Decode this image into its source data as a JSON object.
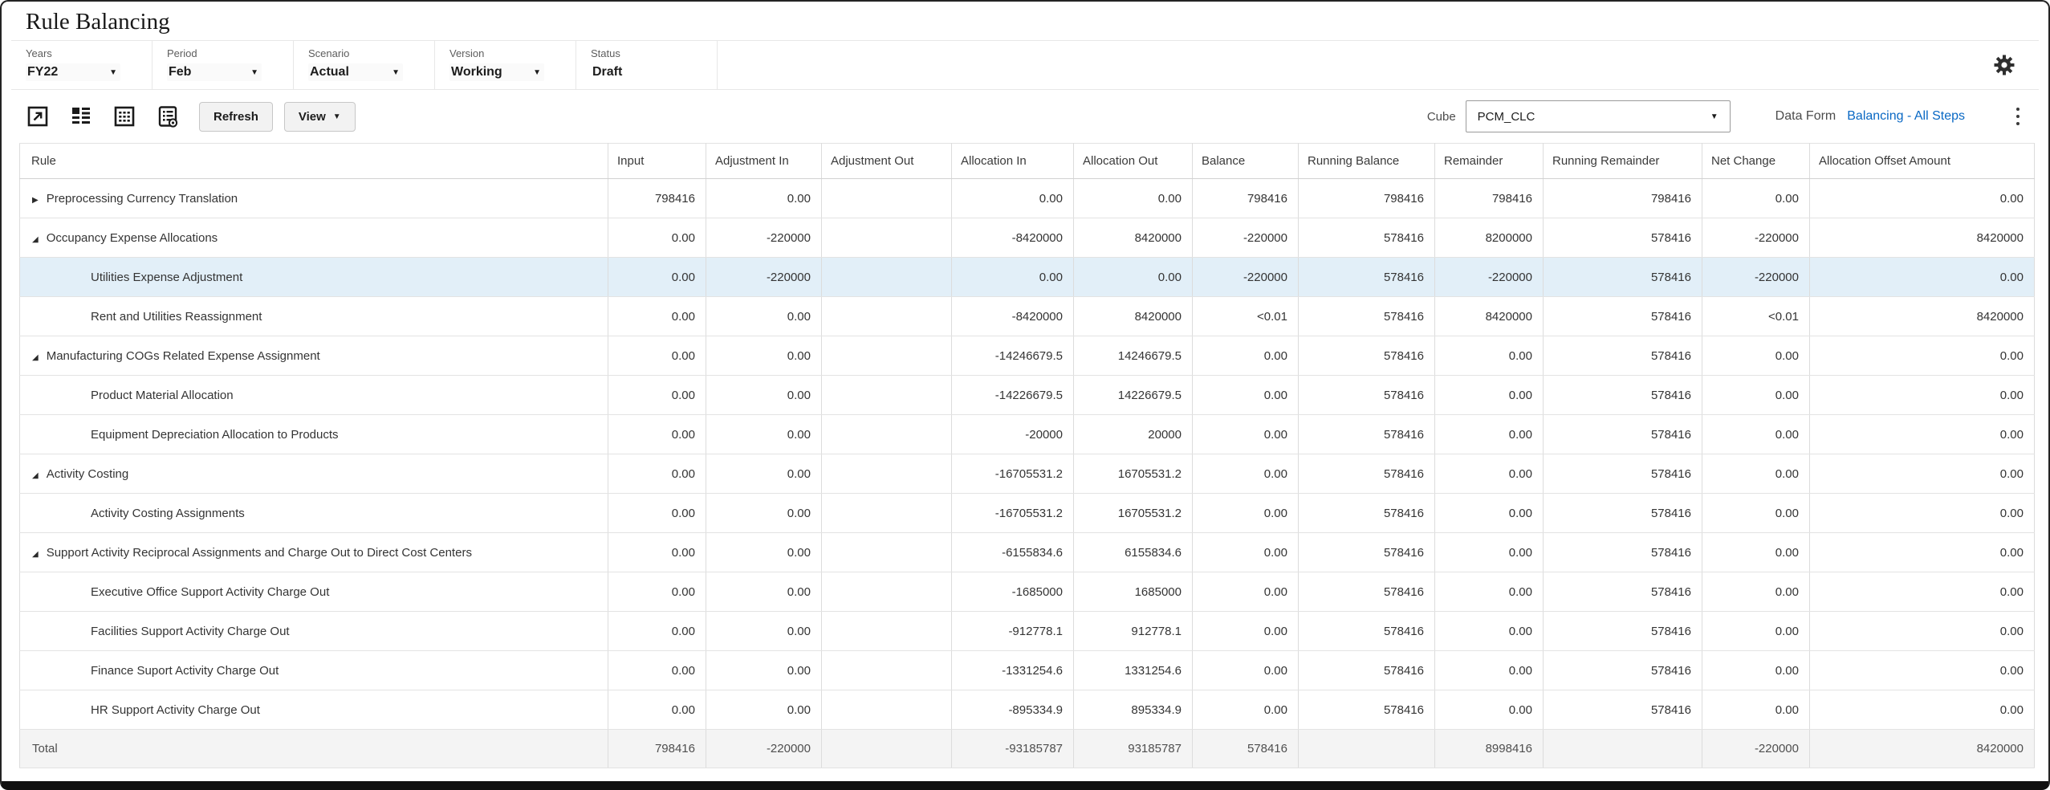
{
  "page": {
    "title": "Rule Balancing"
  },
  "pov": {
    "items": [
      {
        "label": "Years",
        "value": "FY22",
        "has_dropdown": true
      },
      {
        "label": "Period",
        "value": "Feb",
        "has_dropdown": true
      },
      {
        "label": "Scenario",
        "value": "Actual",
        "has_dropdown": true
      },
      {
        "label": "Version",
        "value": "Working",
        "has_dropdown": true
      },
      {
        "label": "Status",
        "value": "Draft",
        "has_dropdown": false
      }
    ]
  },
  "toolbar": {
    "refresh_label": "Refresh",
    "view_label": "View",
    "cube_label": "Cube",
    "cube_value": "PCM_CLC",
    "data_form_label": "Data Form",
    "data_form_link": "Balancing - All Steps",
    "icons": [
      "drill-icon",
      "list-view-icon",
      "grid-view-icon",
      "form-preview-icon",
      "gear-icon",
      "kebab-menu-icon"
    ]
  },
  "colors": {
    "link_blue": "#0968c4",
    "row_highlight": "#e2eff8",
    "total_row_bg": "#f4f4f4"
  },
  "table": {
    "columns": [
      "Rule",
      "Input",
      "Adjustment In",
      "Adjustment Out",
      "Allocation In",
      "Allocation Out",
      "Balance",
      "Running Balance",
      "Remainder",
      "Running Remainder",
      "Net Change",
      "Allocation Offset Amount"
    ],
    "rows": [
      {
        "name": "Preprocessing Currency Translation",
        "level": 0,
        "expand": "collapsed",
        "highlighted": false,
        "values": [
          "798416",
          "0.00",
          "",
          "0.00",
          "0.00",
          "798416",
          "798416",
          "798416",
          "798416",
          "0.00",
          "0.00"
        ]
      },
      {
        "name": "Occupancy Expense Allocations",
        "level": 0,
        "expand": "expanded",
        "highlighted": false,
        "values": [
          "0.00",
          "-220000",
          "",
          "-8420000",
          "8420000",
          "-220000",
          "578416",
          "8200000",
          "578416",
          "-220000",
          "8420000"
        ]
      },
      {
        "name": "Utilities Expense Adjustment",
        "level": 1,
        "expand": null,
        "highlighted": true,
        "values": [
          "0.00",
          "-220000",
          "",
          "0.00",
          "0.00",
          "-220000",
          "578416",
          "-220000",
          "578416",
          "-220000",
          "0.00"
        ]
      },
      {
        "name": "Rent and Utilities Reassignment",
        "level": 1,
        "expand": null,
        "highlighted": false,
        "values": [
          "0.00",
          "0.00",
          "",
          "-8420000",
          "8420000",
          "<0.01",
          "578416",
          "8420000",
          "578416",
          "<0.01",
          "8420000"
        ]
      },
      {
        "name": "Manufacturing COGs Related Expense Assignment",
        "level": 0,
        "expand": "expanded",
        "highlighted": false,
        "values": [
          "0.00",
          "0.00",
          "",
          "-14246679.5",
          "14246679.5",
          "0.00",
          "578416",
          "0.00",
          "578416",
          "0.00",
          "0.00"
        ]
      },
      {
        "name": "Product Material Allocation",
        "level": 1,
        "expand": null,
        "highlighted": false,
        "values": [
          "0.00",
          "0.00",
          "",
          "-14226679.5",
          "14226679.5",
          "0.00",
          "578416",
          "0.00",
          "578416",
          "0.00",
          "0.00"
        ]
      },
      {
        "name": "Equipment Depreciation Allocation to Products",
        "level": 1,
        "expand": null,
        "highlighted": false,
        "values": [
          "0.00",
          "0.00",
          "",
          "-20000",
          "20000",
          "0.00",
          "578416",
          "0.00",
          "578416",
          "0.00",
          "0.00"
        ]
      },
      {
        "name": "Activity Costing",
        "level": 0,
        "expand": "expanded",
        "highlighted": false,
        "values": [
          "0.00",
          "0.00",
          "",
          "-16705531.2",
          "16705531.2",
          "0.00",
          "578416",
          "0.00",
          "578416",
          "0.00",
          "0.00"
        ]
      },
      {
        "name": "Activity Costing Assignments",
        "level": 1,
        "expand": null,
        "highlighted": false,
        "values": [
          "0.00",
          "0.00",
          "",
          "-16705531.2",
          "16705531.2",
          "0.00",
          "578416",
          "0.00",
          "578416",
          "0.00",
          "0.00"
        ]
      },
      {
        "name": "Support Activity Reciprocal Assignments and Charge Out to Direct Cost Centers",
        "level": 0,
        "expand": "expanded",
        "highlighted": false,
        "values": [
          "0.00",
          "0.00",
          "",
          "-6155834.6",
          "6155834.6",
          "0.00",
          "578416",
          "0.00",
          "578416",
          "0.00",
          "0.00"
        ]
      },
      {
        "name": "Executive Office Support Activity Charge Out",
        "level": 1,
        "expand": null,
        "highlighted": false,
        "values": [
          "0.00",
          "0.00",
          "",
          "-1685000",
          "1685000",
          "0.00",
          "578416",
          "0.00",
          "578416",
          "0.00",
          "0.00"
        ]
      },
      {
        "name": "Facilities Support Activity Charge Out",
        "level": 1,
        "expand": null,
        "highlighted": false,
        "values": [
          "0.00",
          "0.00",
          "",
          "-912778.1",
          "912778.1",
          "0.00",
          "578416",
          "0.00",
          "578416",
          "0.00",
          "0.00"
        ]
      },
      {
        "name": "Finance Suport Activity Charge Out",
        "level": 1,
        "expand": null,
        "highlighted": false,
        "values": [
          "0.00",
          "0.00",
          "",
          "-1331254.6",
          "1331254.6",
          "0.00",
          "578416",
          "0.00",
          "578416",
          "0.00",
          "0.00"
        ]
      },
      {
        "name": "HR Support Activity Charge Out",
        "level": 1,
        "expand": null,
        "highlighted": false,
        "values": [
          "0.00",
          "0.00",
          "",
          "-895334.9",
          "895334.9",
          "0.00",
          "578416",
          "0.00",
          "578416",
          "0.00",
          "0.00"
        ]
      }
    ],
    "total": {
      "label": "Total",
      "values": [
        "798416",
        "-220000",
        "",
        "-93185787",
        "93185787",
        "578416",
        "",
        "8998416",
        "",
        "-220000",
        "8420000"
      ]
    }
  }
}
